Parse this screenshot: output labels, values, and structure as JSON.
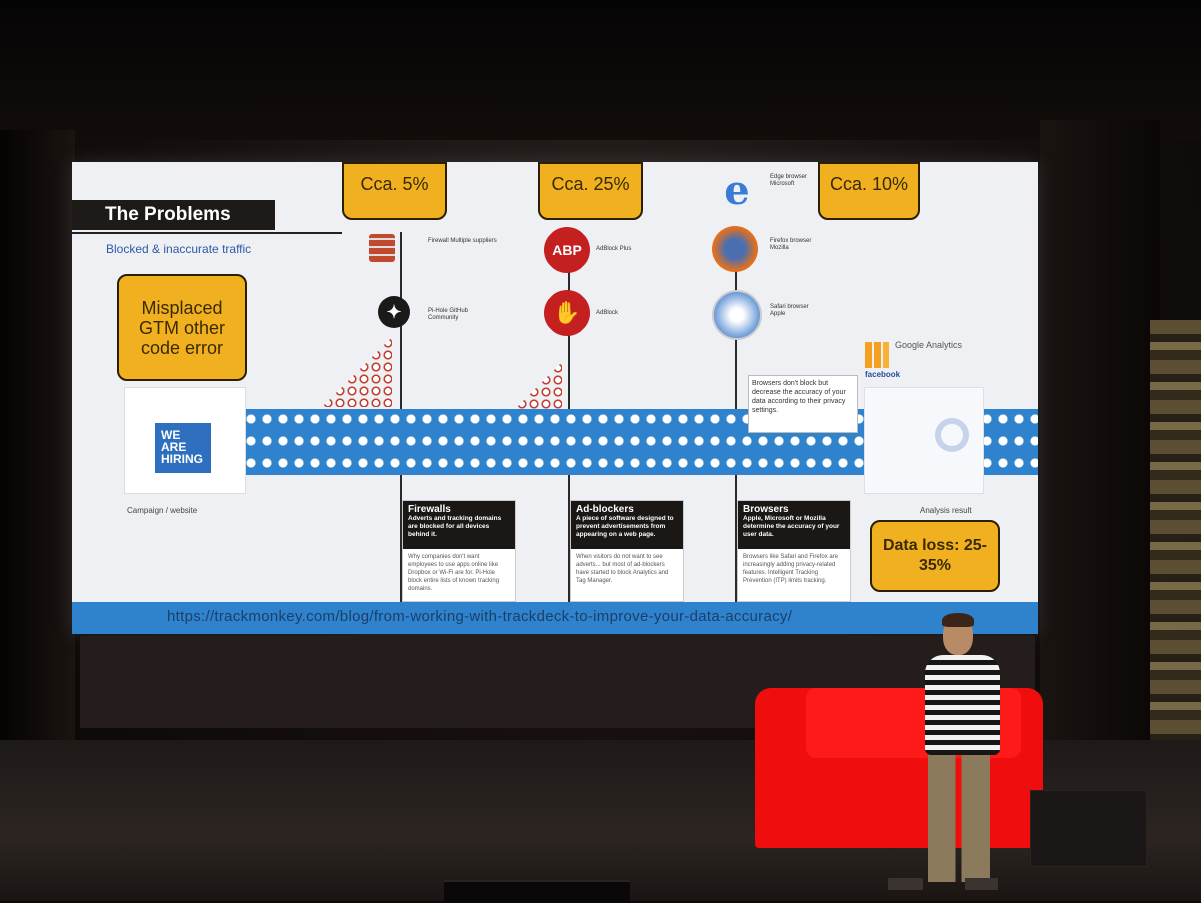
{
  "slide": {
    "title": "The Problems",
    "subtitle": "Blocked & inaccurate traffic",
    "left_callout": "Misplaced GTM other code error",
    "hiring_logo": "WE ARE HIRING",
    "campaign_label": "Campaign / website",
    "analysis_label": "Analysis result",
    "top_callouts": [
      "Cca. 5%",
      "Cca. 25%",
      "Cca. 10%"
    ],
    "data_loss": "Data loss: 25-35%",
    "icons": {
      "firewall_label": "Firewall Multiple suppliers",
      "pihole_label": "Pi-Hole GitHub Community",
      "abp_text": "ABP",
      "abp_label": "AdBlock Plus",
      "adblock_label": "AdBlock",
      "edge_label": "Edge browser Microsoft",
      "firefox_label": "Firefox browser Mozilla",
      "safari_label": "Safari browser Apple"
    },
    "analytics": {
      "ga_text": "Google Analytics",
      "fb_text": "facebook"
    },
    "browser_note": "Browsers don't block but decrease the accuracy of your data according to their privacy settings.",
    "panels": [
      {
        "title": "Firewalls",
        "desc": "Adverts and tracking domains are blocked for all devices behind it.",
        "body": "Why companies don't want employees to use apps online like Dropbox or Wi-Fi are for. Pi-Hole block entire lists of known tracking domains."
      },
      {
        "title": "Ad-blockers",
        "desc": "A piece of software designed to prevent advertisements from appearing on a web page.",
        "body": "When visitors do not want to see adverts... but most of ad-blockers have started to block Analytics and Tag Manager."
      },
      {
        "title": "Browsers",
        "desc": "Apple, Microsoft or Mozilla determine the accuracy of your user data.",
        "body": "Browsers like Safari and Firefox are increasingly adding privacy-related features. Intelligent Tracking Prevention (ITP) limits tracking."
      }
    ],
    "url": "https://trackmonkey.com/blog/from-working-with-trackdeck-to-improve-your-data-accuracy/"
  }
}
